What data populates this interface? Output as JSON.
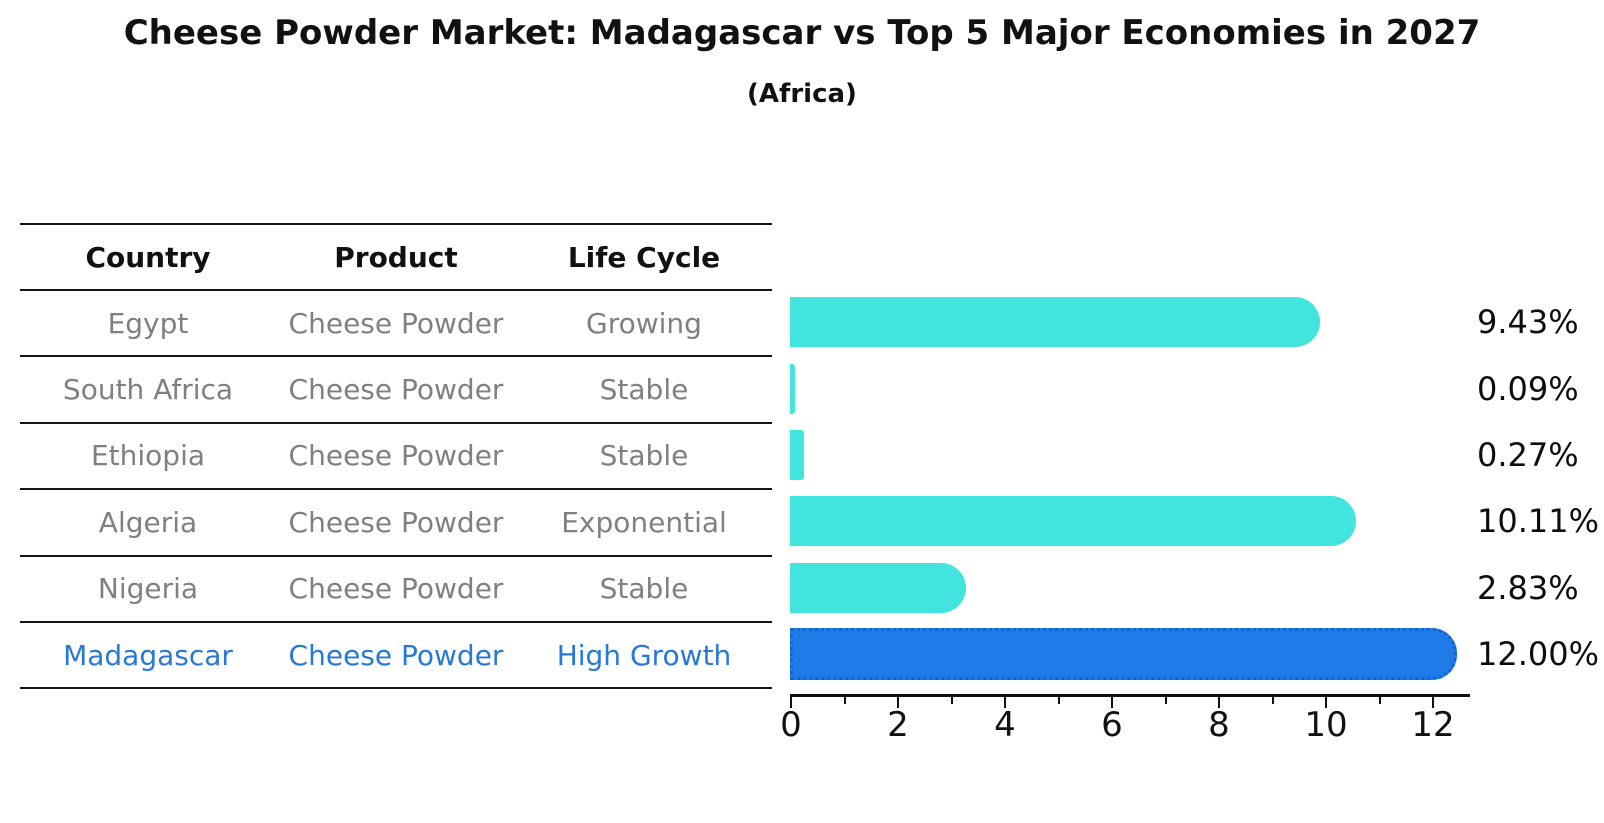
{
  "title": "Cheese Powder Market: Madagascar vs Top 5 Major Economies in 2027",
  "subtitle": "(Africa)",
  "table": {
    "headers": [
      "Country",
      "Product",
      "Life Cycle"
    ],
    "rows": [
      {
        "country": "Egypt",
        "product": "Cheese Powder",
        "life_cycle": "Growing",
        "highlight": false
      },
      {
        "country": "South Africa",
        "product": "Cheese Powder",
        "life_cycle": "Stable",
        "highlight": false
      },
      {
        "country": "Ethiopia",
        "product": "Cheese Powder",
        "life_cycle": "Stable",
        "highlight": false
      },
      {
        "country": "Algeria",
        "product": "Cheese Powder",
        "life_cycle": "Exponential",
        "highlight": false
      },
      {
        "country": "Nigeria",
        "product": "Cheese Powder",
        "life_cycle": "Stable",
        "highlight": false
      },
      {
        "country": "Madagascar",
        "product": "Cheese Powder",
        "life_cycle": "High Growth",
        "highlight": true
      }
    ]
  },
  "chart_data": {
    "type": "bar",
    "orientation": "horizontal",
    "title": "Cheese Powder Market: Madagascar vs Top 5 Major Economies in 2027 (Africa)",
    "categories": [
      "Egypt",
      "South Africa",
      "Ethiopia",
      "Algeria",
      "Nigeria",
      "Madagascar"
    ],
    "values": [
      9.43,
      0.09,
      0.27,
      10.11,
      2.83,
      12.0
    ],
    "value_labels": [
      "9.43%",
      "0.09%",
      "0.27%",
      "10.11%",
      "2.83%",
      "12.00%"
    ],
    "highlight_index": 5,
    "xlabel": "",
    "ylabel": "",
    "xlim": [
      0,
      12.67
    ],
    "x_ticks": [
      0,
      2,
      4,
      6,
      8,
      10,
      12
    ],
    "x_tick_labels": [
      "0",
      "2",
      "4",
      "6",
      "8",
      "10",
      "12"
    ],
    "x_minor_ticks": [
      1,
      3,
      5,
      7,
      9,
      11
    ],
    "grid": false,
    "legend": false
  },
  "colors": {
    "bar_default": "#41E5DE",
    "bar_highlight": "#1E7BE8",
    "bar_highlight_border": "#1465D2",
    "highlight_text": "#2878D8",
    "table_text": "#808080",
    "header_text": "#111111",
    "axis": "#111111"
  }
}
